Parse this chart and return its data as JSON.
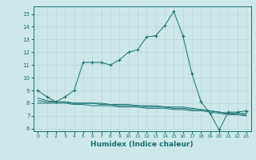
{
  "xlabel": "Humidex (Indice chaleur)",
  "bg_color": "#cce8e8",
  "grid_color": "#b8d8d8",
  "line_color": "#1a7070",
  "xlim": [
    -0.5,
    23.5
  ],
  "ylim": [
    5.8,
    15.6
  ],
  "yticks": [
    6,
    7,
    8,
    9,
    10,
    11,
    12,
    13,
    14,
    15
  ],
  "xticks": [
    0,
    1,
    2,
    3,
    4,
    5,
    6,
    7,
    8,
    9,
    10,
    11,
    12,
    13,
    14,
    15,
    16,
    17,
    18,
    19,
    20,
    21,
    22,
    23
  ],
  "curve1_x": [
    0,
    1,
    2,
    3,
    4,
    5,
    6,
    7,
    8,
    9,
    10,
    11,
    12,
    13,
    14,
    15,
    16,
    17,
    18,
    19,
    20,
    21,
    22,
    23
  ],
  "curve1_y": [
    9.0,
    8.5,
    8.1,
    8.5,
    9.0,
    11.2,
    11.2,
    11.2,
    11.0,
    11.4,
    12.0,
    12.2,
    13.2,
    13.3,
    14.1,
    15.2,
    13.3,
    10.3,
    8.1,
    7.2,
    5.9,
    7.3,
    7.3,
    7.4
  ],
  "curve2_x": [
    0,
    1,
    2,
    3,
    4,
    5,
    6,
    7,
    8,
    9,
    10,
    11,
    12,
    13,
    14,
    15,
    16,
    17,
    18,
    19,
    20,
    21,
    22,
    23
  ],
  "curve2_y": [
    8.4,
    8.2,
    8.1,
    8.1,
    8.0,
    8.0,
    8.0,
    8.0,
    7.9,
    7.9,
    7.9,
    7.8,
    7.8,
    7.8,
    7.7,
    7.7,
    7.7,
    7.6,
    7.5,
    7.4,
    7.3,
    7.2,
    7.2,
    7.2
  ],
  "curve3_x": [
    0,
    1,
    2,
    3,
    4,
    5,
    6,
    7,
    8,
    9,
    10,
    11,
    12,
    13,
    14,
    15,
    16,
    17,
    18,
    19,
    20,
    21,
    22,
    23
  ],
  "curve3_y": [
    8.2,
    8.1,
    8.1,
    8.1,
    8.0,
    8.0,
    8.0,
    7.9,
    7.9,
    7.8,
    7.8,
    7.8,
    7.7,
    7.7,
    7.7,
    7.6,
    7.6,
    7.5,
    7.5,
    7.4,
    7.3,
    7.2,
    7.1,
    7.1
  ],
  "curve4_x": [
    0,
    1,
    2,
    3,
    4,
    5,
    6,
    7,
    8,
    9,
    10,
    11,
    12,
    13,
    14,
    15,
    16,
    17,
    18,
    19,
    20,
    21,
    22,
    23
  ],
  "curve4_y": [
    8.0,
    8.0,
    8.0,
    8.0,
    7.9,
    7.9,
    7.8,
    7.8,
    7.8,
    7.7,
    7.7,
    7.7,
    7.6,
    7.6,
    7.6,
    7.5,
    7.5,
    7.4,
    7.4,
    7.3,
    7.2,
    7.1,
    7.1,
    7.0
  ]
}
